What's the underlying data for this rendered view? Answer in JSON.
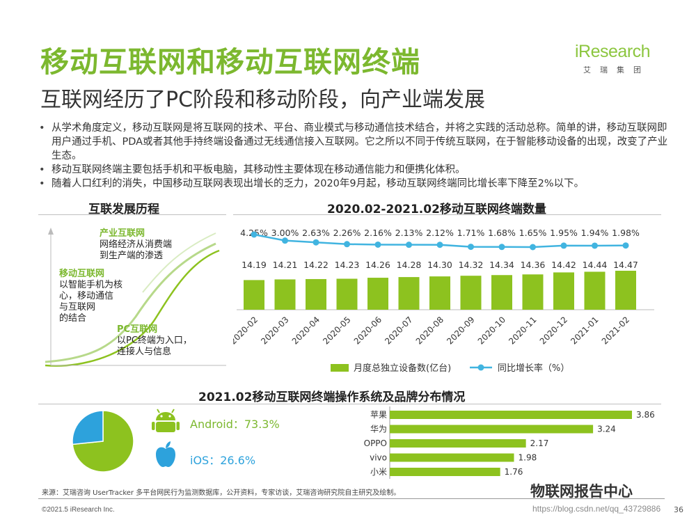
{
  "header": {
    "title": "移动互联网和移动互联网终端",
    "subtitle": "互联网经历了PC阶段和移动阶段，向产业端发展",
    "logo_text": "iResearch",
    "logo_sub": "艾瑞集团",
    "logo_color": "#8cc63f"
  },
  "bullets": [
    "从学术角度定义，移动互联网是将互联网的技术、平台、商业模式与移动通信技术结合，并将之实践的活动总称。简单的讲，移动互联网即用户通过手机、PDA或者其他手持终端设备通过无线通信接入互联网。它之所以不同于传统互联网，在于智能移动设备的出现，改变了产业生态。",
    "移动互联网终端主要包括手机和平板电脑，其移动性主要体现在移动通信能力和便携化体积。",
    "随着人口红利的消失，中国移动互联网表现出增长的乏力，2020年9月起，移动互联网终端同比增长率下降至2%以下。"
  ],
  "history": {
    "title": "互联发展历程",
    "stages": [
      {
        "name": "产业互联网",
        "desc": [
          "网络经济从消费端",
          "到生产端的渗透"
        ]
      },
      {
        "name": "移动互联网",
        "desc": [
          "以智能手机为核",
          "心，移动通信",
          "与互联网",
          "的结合"
        ]
      },
      {
        "name": "PC互联网",
        "desc": [
          "以PC终端为入口，",
          "连接人与信息"
        ]
      }
    ]
  },
  "colors": {
    "accent_green": "#7cb82f",
    "bar_green": "#8dc21f",
    "line_blue": "#41b4e0",
    "pie_blue": "#2da2dc"
  },
  "chart_data": [
    {
      "type": "bar",
      "title": "2020.02-2021.02移动互联网终端数量",
      "categories": [
        "2020-02",
        "2020-03",
        "2020-04",
        "2020-05",
        "2020-06",
        "2020-07",
        "2020-08",
        "2020-09",
        "2020-10",
        "2020-11",
        "2020-12",
        "2021-01",
        "2021-02"
      ],
      "series": [
        {
          "name": "月度总独立设备数(亿台)",
          "type": "bar",
          "values": [
            14.19,
            14.21,
            14.22,
            14.23,
            14.26,
            14.28,
            14.3,
            14.32,
            14.34,
            14.36,
            14.42,
            14.44,
            14.47
          ],
          "labels": [
            "14.19",
            "14.21",
            "14.22",
            "14.23",
            "14.26",
            "14.28",
            "14.30",
            "14.32",
            "14.34",
            "14.36",
            "14.42",
            "14.44",
            "14.47"
          ]
        },
        {
          "name": "同比增长率（%）",
          "type": "line",
          "values": [
            4.25,
            3.0,
            2.63,
            2.26,
            2.16,
            2.13,
            2.12,
            1.71,
            1.68,
            1.65,
            1.95,
            1.94,
            1.98
          ],
          "labels": [
            "4.25%",
            "3.00%",
            "2.63%",
            "2.26%",
            "2.16%",
            "2.13%",
            "2.12%",
            "1.71%",
            "1.68%",
            "1.65%",
            "1.95%",
            "1.94%",
            "1.98%"
          ]
        }
      ],
      "legend": "bottom"
    },
    {
      "type": "pie",
      "title": "2021.02移动互联网终端操作系统及品牌分布情况",
      "categories": [
        "Android",
        "iOS"
      ],
      "values": [
        73.3,
        26.6
      ],
      "labels": [
        "Android：73.3%",
        "iOS：26.6%"
      ]
    },
    {
      "type": "bar",
      "orientation": "horizontal",
      "categories": [
        "苹果",
        "华为",
        "OPPO",
        "vivo",
        "小米"
      ],
      "values": [
        3.86,
        3.24,
        2.17,
        1.98,
        1.76
      ],
      "labels": [
        "3.86",
        "3.24",
        "2.17",
        "1.98",
        "1.76"
      ]
    }
  ],
  "footer": {
    "source": "来源：艾瑞咨询 UserTracker 多平台网民行为监测数据库，公开资料，专家访谈，艾瑞咨询研究院自主研究及绘制。",
    "copyright": "©2021.5 iResearch Inc.",
    "page": "36",
    "watermark": "物联网报告中心",
    "url": "https://blog.csdn.net/qq_43729886"
  }
}
